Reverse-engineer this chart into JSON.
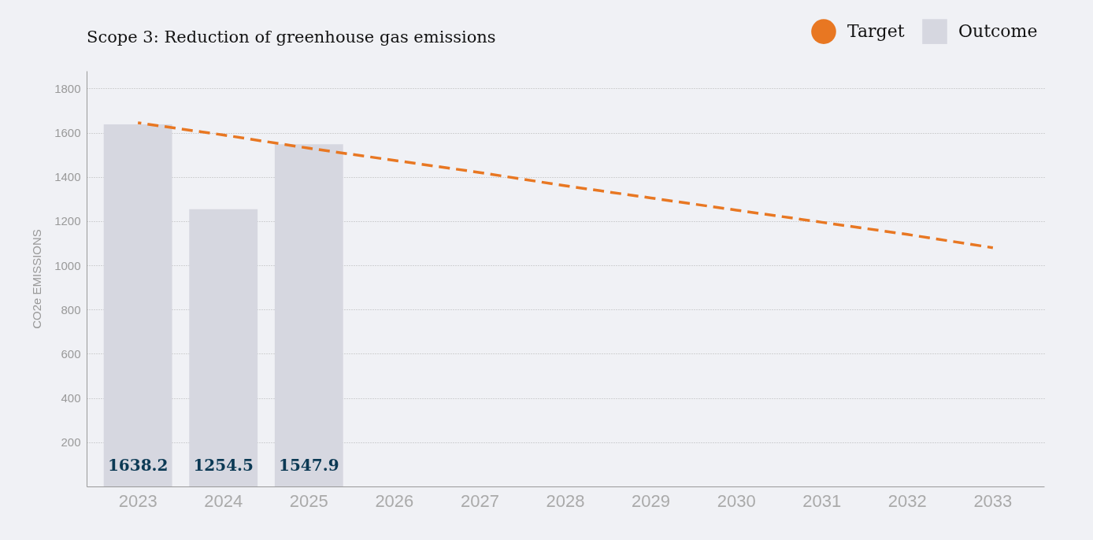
{
  "chart_data": {
    "type": "bar",
    "title": "Scope 3: Reduction of greenhouse gas emissions",
    "ylabel": "CO2e EMISSIONS",
    "categories": [
      "2023",
      "2024",
      "2025",
      "2026",
      "2027",
      "2028",
      "2029",
      "2030",
      "2031",
      "2032",
      "2033"
    ],
    "series": [
      {
        "name": "Target",
        "type": "line",
        "color": "#e87722",
        "line_style": "dashed",
        "marker": "none",
        "values": [
          1645,
          1590,
          1530,
          1475,
          1420,
          1360,
          1305,
          1250,
          1195,
          1140,
          1080
        ]
      },
      {
        "name": "Outcome",
        "color": "#d6d7e0",
        "values": [
          1638.2,
          1254.5,
          1547.9,
          null,
          null,
          null,
          null,
          null,
          null,
          null,
          null
        ],
        "value_labels": [
          "1638.2",
          "1254.5",
          "1547.9",
          null,
          null,
          null,
          null,
          null,
          null,
          null,
          null
        ]
      }
    ],
    "ylim": [
      0,
      1880
    ],
    "yticks": [
      200,
      400,
      600,
      800,
      1000,
      1200,
      1400,
      1600,
      1800
    ],
    "grid": "y",
    "legend": "top right"
  }
}
